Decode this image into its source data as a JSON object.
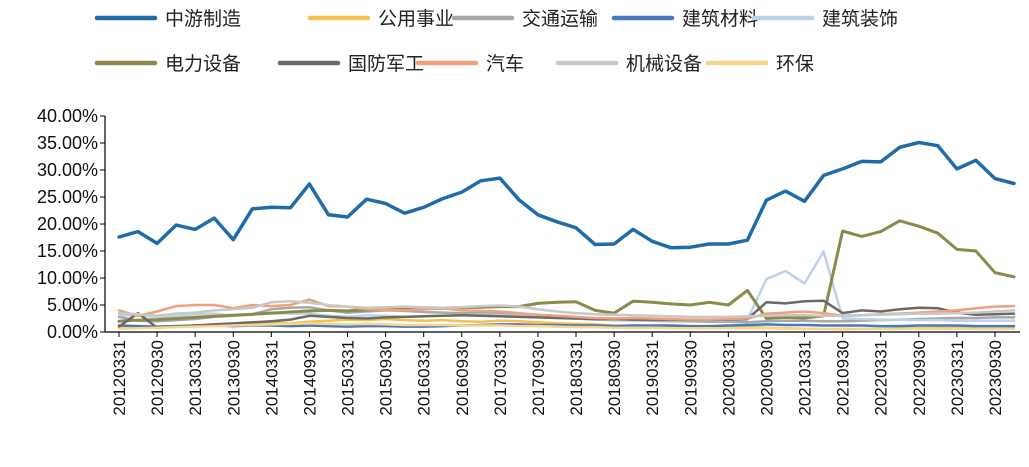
{
  "chart_data": {
    "type": "line",
    "title": "",
    "xlabel": "",
    "ylabel": "",
    "ylim": [
      0,
      0.4
    ],
    "y_tick_format": "percent_2dp",
    "y_ticks": [
      "0.00%",
      "5.00%",
      "10.00%",
      "15.00%",
      "20.00%",
      "25.00%",
      "30.00%",
      "35.00%",
      "40.00%"
    ],
    "grid": false,
    "legend": "top",
    "x_tick_labels": [
      "20120331",
      "20120930",
      "20130331",
      "20130930",
      "20140331",
      "20140930",
      "20150331",
      "20150930",
      "20160331",
      "20160930",
      "20170331",
      "20170930",
      "20180331",
      "20180930",
      "20190331",
      "20190930",
      "20200331",
      "20200930",
      "20210331",
      "20210930",
      "20220331",
      "20220930",
      "20230331",
      "20230930"
    ],
    "x": [
      "20120331",
      "20120630",
      "20120930",
      "20121231",
      "20130331",
      "20130630",
      "20130930",
      "20131231",
      "20140331",
      "20140630",
      "20140930",
      "20141231",
      "20150331",
      "20150630",
      "20150930",
      "20151231",
      "20160331",
      "20160630",
      "20160930",
      "20161231",
      "20170331",
      "20170630",
      "20170930",
      "20171231",
      "20180331",
      "20180630",
      "20180930",
      "20181231",
      "20190331",
      "20190630",
      "20190930",
      "20191231",
      "20200331",
      "20200630",
      "20200930",
      "20201231",
      "20210331",
      "20210630",
      "20210930",
      "20211231",
      "20220331",
      "20220630",
      "20220930",
      "20221231",
      "20230331",
      "20230630",
      "20230930",
      "20231231"
    ],
    "series": [
      {
        "name": "中游制造",
        "color": "#1f6ca8",
        "width": 3.5,
        "values": [
          0.176,
          0.186,
          0.164,
          0.198,
          0.19,
          0.211,
          0.171,
          0.228,
          0.231,
          0.23,
          0.274,
          0.217,
          0.213,
          0.246,
          0.238,
          0.22,
          0.231,
          0.247,
          0.259,
          0.28,
          0.285,
          0.245,
          0.217,
          0.204,
          0.193,
          0.162,
          0.163,
          0.19,
          0.168,
          0.156,
          0.157,
          0.163,
          0.163,
          0.17,
          0.244,
          0.261,
          0.242,
          0.29,
          0.302,
          0.316,
          0.315,
          0.342,
          0.351,
          0.345,
          0.302,
          0.318,
          0.284,
          0.275
        ]
      },
      {
        "name": "公用事业",
        "color": "#f2c14e",
        "width": 2.5,
        "values": [
          0.008,
          0.009,
          0.01,
          0.011,
          0.012,
          0.013,
          0.014,
          0.016,
          0.017,
          0.016,
          0.019,
          0.021,
          0.023,
          0.022,
          0.024,
          0.022,
          0.021,
          0.022,
          0.02,
          0.019,
          0.021,
          0.02,
          0.018,
          0.016,
          0.015,
          0.014,
          0.012,
          0.011,
          0.011,
          0.01,
          0.009,
          0.009,
          0.01,
          0.01,
          0.008,
          0.007,
          0.006,
          0.006,
          0.005,
          0.006,
          0.006,
          0.007,
          0.007,
          0.008,
          0.008,
          0.009,
          0.009,
          0.01
        ]
      },
      {
        "name": "交通运输",
        "color": "#a8a8a8",
        "width": 2.5,
        "values": [
          0.028,
          0.021,
          0.02,
          0.022,
          0.024,
          0.028,
          0.03,
          0.033,
          0.042,
          0.045,
          0.046,
          0.04,
          0.036,
          0.038,
          0.04,
          0.039,
          0.037,
          0.036,
          0.035,
          0.035,
          0.034,
          0.032,
          0.03,
          0.027,
          0.025,
          0.023,
          0.022,
          0.022,
          0.021,
          0.02,
          0.02,
          0.019,
          0.019,
          0.018,
          0.02,
          0.021,
          0.021,
          0.02,
          0.02,
          0.021,
          0.022,
          0.023,
          0.024,
          0.025,
          0.026,
          0.026,
          0.027,
          0.027
        ]
      },
      {
        "name": "建筑材料",
        "color": "#4a78c0",
        "width": 2.5,
        "values": [
          0.012,
          0.011,
          0.01,
          0.011,
          0.012,
          0.012,
          0.011,
          0.012,
          0.012,
          0.011,
          0.012,
          0.011,
          0.01,
          0.011,
          0.011,
          0.01,
          0.01,
          0.011,
          0.012,
          0.013,
          0.014,
          0.014,
          0.013,
          0.013,
          0.012,
          0.012,
          0.011,
          0.012,
          0.012,
          0.012,
          0.011,
          0.011,
          0.012,
          0.013,
          0.014,
          0.013,
          0.013,
          0.012,
          0.012,
          0.012,
          0.011,
          0.011,
          0.012,
          0.012,
          0.012,
          0.011,
          0.011,
          0.011
        ]
      },
      {
        "name": "建筑装饰",
        "color": "#bcd2ea",
        "width": 2.5,
        "values": [
          0.032,
          0.03,
          0.028,
          0.03,
          0.033,
          0.034,
          0.03,
          0.032,
          0.035,
          0.034,
          0.034,
          0.03,
          0.028,
          0.031,
          0.03,
          0.028,
          0.029,
          0.03,
          0.031,
          0.032,
          0.031,
          0.03,
          0.028,
          0.026,
          0.025,
          0.024,
          0.023,
          0.023,
          0.022,
          0.022,
          0.021,
          0.021,
          0.022,
          0.023,
          0.098,
          0.113,
          0.09,
          0.149,
          0.025,
          0.024,
          0.023,
          0.023,
          0.022,
          0.022,
          0.021,
          0.021,
          0.021,
          0.021
        ]
      },
      {
        "name": "电力设备",
        "color": "#8c8a4b",
        "width": 3,
        "values": [
          0.02,
          0.022,
          0.023,
          0.025,
          0.027,
          0.029,
          0.031,
          0.033,
          0.035,
          0.037,
          0.039,
          0.04,
          0.039,
          0.041,
          0.042,
          0.042,
          0.043,
          0.044,
          0.045,
          0.046,
          0.047,
          0.047,
          0.053,
          0.055,
          0.056,
          0.04,
          0.035,
          0.057,
          0.055,
          0.052,
          0.05,
          0.055,
          0.05,
          0.077,
          0.025,
          0.027,
          0.026,
          0.03,
          0.187,
          0.177,
          0.186,
          0.206,
          0.196,
          0.183,
          0.153,
          0.15,
          0.11,
          0.102
        ]
      },
      {
        "name": "国防军工",
        "color": "#6a6a6a",
        "width": 2.5,
        "values": [
          0.01,
          0.035,
          0.008,
          0.01,
          0.012,
          0.014,
          0.016,
          0.018,
          0.02,
          0.023,
          0.03,
          0.028,
          0.026,
          0.025,
          0.027,
          0.028,
          0.029,
          0.03,
          0.031,
          0.03,
          0.029,
          0.028,
          0.027,
          0.026,
          0.025,
          0.024,
          0.024,
          0.023,
          0.023,
          0.023,
          0.022,
          0.022,
          0.023,
          0.024,
          0.055,
          0.053,
          0.057,
          0.058,
          0.035,
          0.04,
          0.038,
          0.042,
          0.045,
          0.044,
          0.036,
          0.032,
          0.033,
          0.034
        ]
      },
      {
        "name": "汽车",
        "color": "#f0a07a",
        "width": 2.5,
        "values": [
          0.04,
          0.03,
          0.038,
          0.048,
          0.05,
          0.05,
          0.044,
          0.05,
          0.048,
          0.05,
          0.06,
          0.048,
          0.047,
          0.042,
          0.041,
          0.04,
          0.042,
          0.044,
          0.04,
          0.039,
          0.038,
          0.035,
          0.032,
          0.03,
          0.028,
          0.026,
          0.025,
          0.026,
          0.025,
          0.024,
          0.023,
          0.023,
          0.024,
          0.025,
          0.034,
          0.036,
          0.038,
          0.035,
          0.03,
          0.031,
          0.033,
          0.034,
          0.036,
          0.038,
          0.04,
          0.044,
          0.047,
          0.048
        ]
      },
      {
        "name": "机械设备",
        "color": "#c8c8c8",
        "width": 2.5,
        "values": [
          0.035,
          0.033,
          0.03,
          0.034,
          0.036,
          0.04,
          0.042,
          0.045,
          0.055,
          0.057,
          0.054,
          0.05,
          0.047,
          0.045,
          0.046,
          0.047,
          0.046,
          0.045,
          0.046,
          0.048,
          0.049,
          0.047,
          0.042,
          0.038,
          0.035,
          0.033,
          0.032,
          0.031,
          0.03,
          0.029,
          0.028,
          0.028,
          0.028,
          0.029,
          0.03,
          0.031,
          0.031,
          0.03,
          0.03,
          0.031,
          0.032,
          0.033,
          0.034,
          0.034,
          0.035,
          0.036,
          0.038,
          0.04
        ]
      },
      {
        "name": "环保",
        "color": "#f7d58a",
        "width": 2.5,
        "values": [
          0.006,
          0.007,
          0.008,
          0.009,
          0.01,
          0.011,
          0.012,
          0.013,
          0.014,
          0.015,
          0.016,
          0.015,
          0.014,
          0.015,
          0.014,
          0.013,
          0.013,
          0.013,
          0.012,
          0.012,
          0.012,
          0.011,
          0.011,
          0.01,
          0.009,
          0.009,
          0.008,
          0.008,
          0.008,
          0.007,
          0.007,
          0.007,
          0.007,
          0.007,
          0.007,
          0.006,
          0.006,
          0.006,
          0.006,
          0.006,
          0.006,
          0.006,
          0.006,
          0.006,
          0.006,
          0.006,
          0.006,
          0.006
        ]
      }
    ]
  }
}
